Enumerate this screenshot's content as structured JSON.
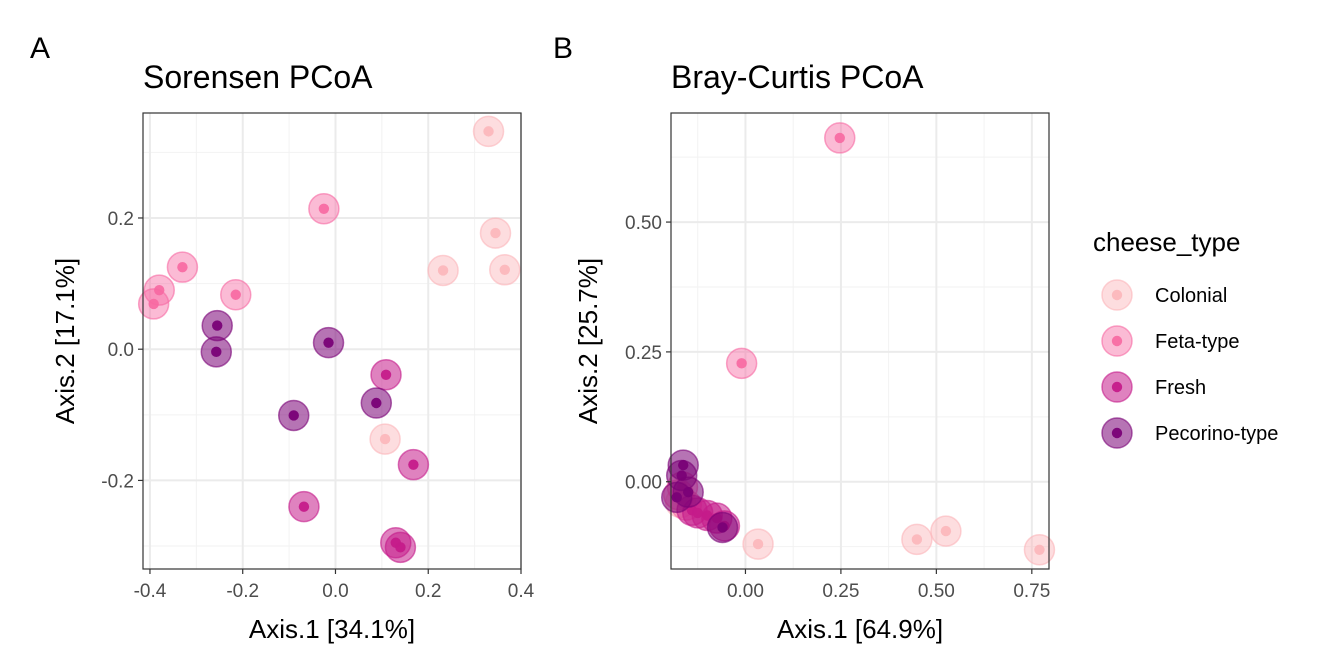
{
  "colors": {
    "Colonial": "#fbb4b9",
    "Feta-type": "#f768a1",
    "Fresh": "#c51b8a",
    "Pecorino-type": "#7a0177",
    "grid_major": "#ebebeb",
    "grid_minor": "#f2f2f2",
    "panel_border": "#333333"
  },
  "legend": {
    "title": "cheese_type",
    "items": [
      {
        "label": "Colonial",
        "key": "Colonial"
      },
      {
        "label": "Feta-type",
        "key": "Feta-type"
      },
      {
        "label": "Fresh",
        "key": "Fresh"
      },
      {
        "label": "Pecorino-type",
        "key": "Pecorino-type"
      }
    ]
  },
  "chart_data": [
    {
      "type": "scatter",
      "tag": "A",
      "title": "Sorensen PCoA",
      "xlabel": "Axis.1   [34.1%]",
      "ylabel": "Axis.2   [17.1%]",
      "xlim": [
        -0.415,
        0.4
      ],
      "ylim": [
        -0.335,
        0.36
      ],
      "xticks": [
        -0.4,
        -0.2,
        0.0,
        0.2,
        0.4
      ],
      "xtick_labels": [
        "-0.4",
        "-0.2",
        "0.0",
        "0.2",
        "0.4"
      ],
      "yticks": [
        -0.2,
        0.0,
        0.2
      ],
      "ytick_labels": [
        "-0.2",
        "0.0",
        "0.2"
      ],
      "grid": true,
      "points": [
        {
          "x": 0.33,
          "y": 0.332,
          "group": "Colonial"
        },
        {
          "x": 0.345,
          "y": 0.177,
          "group": "Colonial"
        },
        {
          "x": 0.232,
          "y": 0.12,
          "group": "Colonial"
        },
        {
          "x": 0.365,
          "y": 0.121,
          "group": "Colonial"
        },
        {
          "x": 0.107,
          "y": -0.137,
          "group": "Colonial"
        },
        {
          "x": -0.025,
          "y": 0.214,
          "group": "Feta-type"
        },
        {
          "x": -0.33,
          "y": 0.125,
          "group": "Feta-type"
        },
        {
          "x": -0.38,
          "y": 0.09,
          "group": "Feta-type"
        },
        {
          "x": -0.392,
          "y": 0.069,
          "group": "Feta-type"
        },
        {
          "x": -0.215,
          "y": 0.083,
          "group": "Feta-type"
        },
        {
          "x": 0.109,
          "y": -0.039,
          "group": "Fresh"
        },
        {
          "x": 0.168,
          "y": -0.176,
          "group": "Fresh"
        },
        {
          "x": -0.068,
          "y": -0.24,
          "group": "Fresh"
        },
        {
          "x": 0.13,
          "y": -0.295,
          "group": "Fresh"
        },
        {
          "x": 0.14,
          "y": -0.302,
          "group": "Fresh"
        },
        {
          "x": -0.255,
          "y": 0.036,
          "group": "Pecorino-type"
        },
        {
          "x": -0.257,
          "y": -0.004,
          "group": "Pecorino-type"
        },
        {
          "x": -0.015,
          "y": 0.01,
          "group": "Pecorino-type"
        },
        {
          "x": -0.09,
          "y": -0.101,
          "group": "Pecorino-type"
        },
        {
          "x": 0.088,
          "y": -0.082,
          "group": "Pecorino-type"
        }
      ]
    },
    {
      "type": "scatter",
      "tag": "B",
      "title": "Bray-Curtis PCoA",
      "xlabel": "Axis.1   [64.9%]",
      "ylabel": "Axis.2   [25.7%]",
      "xlim": [
        -0.195,
        0.795
      ],
      "ylim": [
        -0.168,
        0.71
      ],
      "xticks": [
        0.0,
        0.25,
        0.5,
        0.75
      ],
      "xtick_labels": [
        "0.00",
        "0.25",
        "0.50",
        "0.75"
      ],
      "yticks": [
        0.0,
        0.25,
        0.5
      ],
      "ytick_labels": [
        "0.00",
        "0.25",
        "0.50"
      ],
      "grid": true,
      "points": [
        {
          "x": 0.033,
          "y": -0.12,
          "group": "Colonial"
        },
        {
          "x": 0.449,
          "y": -0.111,
          "group": "Colonial"
        },
        {
          "x": 0.525,
          "y": -0.095,
          "group": "Colonial"
        },
        {
          "x": 0.77,
          "y": -0.131,
          "group": "Colonial"
        },
        {
          "x": -0.17,
          "y": -0.04,
          "group": "Colonial"
        },
        {
          "x": 0.247,
          "y": 0.662,
          "group": "Feta-type"
        },
        {
          "x": -0.01,
          "y": 0.228,
          "group": "Feta-type"
        },
        {
          "x": -0.175,
          "y": -0.025,
          "group": "Feta-type"
        },
        {
          "x": -0.165,
          "y": -0.01,
          "group": "Feta-type"
        },
        {
          "x": -0.155,
          "y": -0.045,
          "group": "Feta-type"
        },
        {
          "x": -0.14,
          "y": -0.055,
          "group": "Fresh"
        },
        {
          "x": -0.125,
          "y": -0.06,
          "group": "Fresh"
        },
        {
          "x": -0.1,
          "y": -0.065,
          "group": "Fresh"
        },
        {
          "x": -0.075,
          "y": -0.07,
          "group": "Fresh"
        },
        {
          "x": -0.055,
          "y": -0.085,
          "group": "Fresh"
        },
        {
          "x": -0.163,
          "y": 0.032,
          "group": "Pecorino-type"
        },
        {
          "x": -0.167,
          "y": 0.012,
          "group": "Pecorino-type"
        },
        {
          "x": -0.18,
          "y": -0.03,
          "group": "Pecorino-type"
        },
        {
          "x": -0.15,
          "y": -0.02,
          "group": "Pecorino-type"
        },
        {
          "x": -0.06,
          "y": -0.088,
          "group": "Pecorino-type"
        }
      ]
    }
  ]
}
